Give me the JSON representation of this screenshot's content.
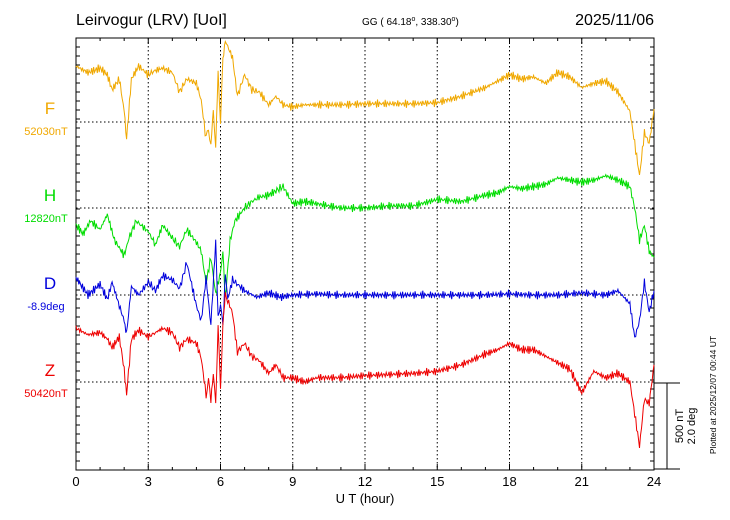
{
  "header": {
    "station": "Leirvogur (LRV)  [UoI]",
    "coords": "GG ( 64.18",
    "coords2": ", 338.30",
    "coords_close": ")",
    "date": "2025/11/06"
  },
  "scale": {
    "nt": "500 nT",
    "deg": "2.0 deg"
  },
  "plotted_note": "Plotted at 2025/12/07 00:44 UT",
  "chart_data": {
    "type": "line",
    "xlabel": "U T (hour)",
    "xlim": [
      0,
      24
    ],
    "x_ticks": [
      "0",
      "3",
      "6",
      "9",
      "12",
      "15",
      "18",
      "21",
      "24"
    ],
    "grid": "dotted baselines per component",
    "series": [
      {
        "name": "F",
        "baseline_label": "52030nT",
        "color": "#f0a800",
        "x": [
          0,
          0.5,
          1,
          1.3,
          1.5,
          1.8,
          2.0,
          2.1,
          2.3,
          2.6,
          3,
          3.3,
          3.6,
          4,
          4.3,
          4.6,
          5,
          5.2,
          5.4,
          5.5,
          5.6,
          5.7,
          5.8,
          5.9,
          6.0,
          6.1,
          6.2,
          6.3,
          6.5,
          6.7,
          7,
          7.3,
          7.6,
          8,
          8.3,
          8.6,
          9,
          9.5,
          10,
          11,
          12,
          13,
          14,
          15,
          16,
          17,
          17.5,
          18,
          18.5,
          19,
          19.5,
          20,
          20.5,
          21,
          21.5,
          22,
          22.5,
          23,
          23.2,
          23.4,
          23.6,
          23.8,
          24
        ],
        "values": [
          2.6,
          2.3,
          2.5,
          2.2,
          1.5,
          2.0,
          0.5,
          -0.8,
          2.0,
          2.6,
          2.2,
          2.4,
          2.5,
          2.3,
          1.4,
          2.0,
          1.8,
          1.0,
          -0.8,
          -0.3,
          -1.0,
          0.5,
          -1.2,
          2.4,
          0.0,
          2.8,
          3.9,
          3.5,
          3.0,
          1.2,
          2.2,
          1.5,
          1.4,
          0.8,
          1.2,
          0.8,
          0.7,
          0.8,
          0.8,
          0.8,
          0.85,
          0.85,
          0.85,
          0.9,
          1.2,
          1.6,
          1.9,
          2.2,
          2.0,
          2.1,
          1.8,
          2.3,
          2.1,
          1.6,
          1.8,
          1.9,
          1.4,
          0.5,
          -1.0,
          -2.5,
          -0.5,
          -1.0,
          0.6
        ]
      },
      {
        "name": "H",
        "baseline_label": "12820nT",
        "color": "#00dd00",
        "x": [
          0,
          0.3,
          0.6,
          1,
          1.3,
          1.6,
          2.0,
          2.2,
          2.5,
          2.8,
          3.0,
          3.3,
          3.6,
          4,
          4.3,
          4.6,
          5,
          5.2,
          5.4,
          5.6,
          5.8,
          6.0,
          6.1,
          6.2,
          6.4,
          6.6,
          7,
          7.3,
          7.6,
          8,
          8.3,
          8.6,
          9,
          9.5,
          10,
          11,
          12,
          13,
          14,
          15,
          16,
          17,
          17.5,
          18,
          18.5,
          19,
          19.5,
          20,
          20.5,
          21,
          21.5,
          22,
          22.5,
          23,
          23.2,
          23.4,
          23.6,
          23.8,
          24
        ],
        "values": [
          -0.8,
          -1.2,
          -0.6,
          -1.0,
          -0.3,
          -1.5,
          -2.2,
          -1.4,
          -0.6,
          -0.9,
          -1.1,
          -1.7,
          -0.8,
          -1.4,
          -1.8,
          -1.0,
          -1.6,
          -2.0,
          -3.5,
          -2.3,
          -4.0,
          -3.0,
          -2.0,
          -4.2,
          -1.5,
          -0.6,
          0.0,
          0.3,
          0.5,
          0.6,
          0.8,
          1.0,
          0.2,
          0.3,
          0.2,
          0.0,
          0.0,
          0.1,
          0.1,
          0.4,
          0.3,
          0.6,
          0.7,
          1.0,
          0.9,
          1.0,
          1.1,
          1.4,
          1.3,
          1.2,
          1.3,
          1.5,
          1.3,
          1.0,
          0.0,
          -1.5,
          -0.8,
          -2.0,
          -2.3
        ]
      },
      {
        "name": "D",
        "baseline_label": "-8.9deg",
        "color": "#0000dd",
        "x": [
          0,
          0.5,
          1,
          1.3,
          1.5,
          1.8,
          2.0,
          2.1,
          2.3,
          2.6,
          3,
          3.3,
          3.6,
          4,
          4.3,
          4.6,
          5,
          5.2,
          5.4,
          5.6,
          5.8,
          5.9,
          6.0,
          6.1,
          6.2,
          6.3,
          6.5,
          6.8,
          7,
          7.5,
          8,
          8.5,
          9,
          10,
          11,
          12,
          13,
          14,
          15,
          16,
          17,
          18,
          19,
          20,
          21,
          22,
          22.5,
          23,
          23.2,
          23.4,
          23.6,
          23.8,
          24
        ],
        "values": [
          0.8,
          0.0,
          0.5,
          -0.2,
          0.6,
          -0.5,
          -1.2,
          -1.8,
          0.4,
          0.0,
          0.6,
          0.2,
          0.9,
          0.7,
          0.3,
          1.5,
          -0.5,
          -1.2,
          0.8,
          -1.4,
          2.5,
          -1.0,
          -0.3,
          -1.5,
          1.0,
          -0.2,
          0.7,
          0.4,
          0.2,
          -0.1,
          0.1,
          -0.1,
          0.0,
          0.05,
          0.0,
          0.0,
          0.0,
          0.0,
          0.0,
          0.0,
          0.0,
          0.05,
          0.0,
          0.0,
          0.1,
          0.0,
          0.2,
          -0.4,
          -2.0,
          -1.2,
          0.6,
          -0.8,
          0.2
        ]
      },
      {
        "name": "Z",
        "baseline_label": "50420nT",
        "color": "#ee0000",
        "x": [
          0,
          0.5,
          1,
          1.3,
          1.5,
          1.8,
          2.0,
          2.1,
          2.3,
          2.6,
          3,
          3.3,
          3.6,
          4,
          4.3,
          4.6,
          5,
          5.2,
          5.4,
          5.5,
          5.6,
          5.7,
          5.8,
          5.9,
          6.0,
          6.1,
          6.2,
          6.3,
          6.5,
          6.7,
          7,
          7.3,
          7.6,
          8,
          8.3,
          8.6,
          9,
          9.5,
          10,
          11,
          12,
          13,
          14,
          15,
          16,
          17,
          17.5,
          18,
          18.5,
          19,
          19.5,
          20,
          20.5,
          21,
          21.5,
          22,
          22.5,
          23,
          23.2,
          23.4,
          23.6,
          23.8,
          24
        ],
        "values": [
          2.5,
          2.2,
          2.3,
          2.0,
          1.6,
          2.1,
          0.6,
          -0.6,
          2.0,
          2.4,
          2.1,
          2.3,
          2.5,
          2.3,
          1.6,
          2.0,
          1.8,
          1.1,
          -0.6,
          0.0,
          -0.9,
          0.4,
          -1.0,
          2.6,
          -0.3,
          2.8,
          4.0,
          3.8,
          3.2,
          1.4,
          1.8,
          1.2,
          1.0,
          0.4,
          0.8,
          0.2,
          0.2,
          0.0,
          0.2,
          0.2,
          0.3,
          0.35,
          0.4,
          0.5,
          0.8,
          1.3,
          1.5,
          1.8,
          1.5,
          1.5,
          1.2,
          0.9,
          0.6,
          -0.5,
          0.5,
          0.2,
          0.4,
          0.0,
          -1.5,
          -3.0,
          -0.8,
          -1.0,
          0.8
        ]
      }
    ]
  }
}
